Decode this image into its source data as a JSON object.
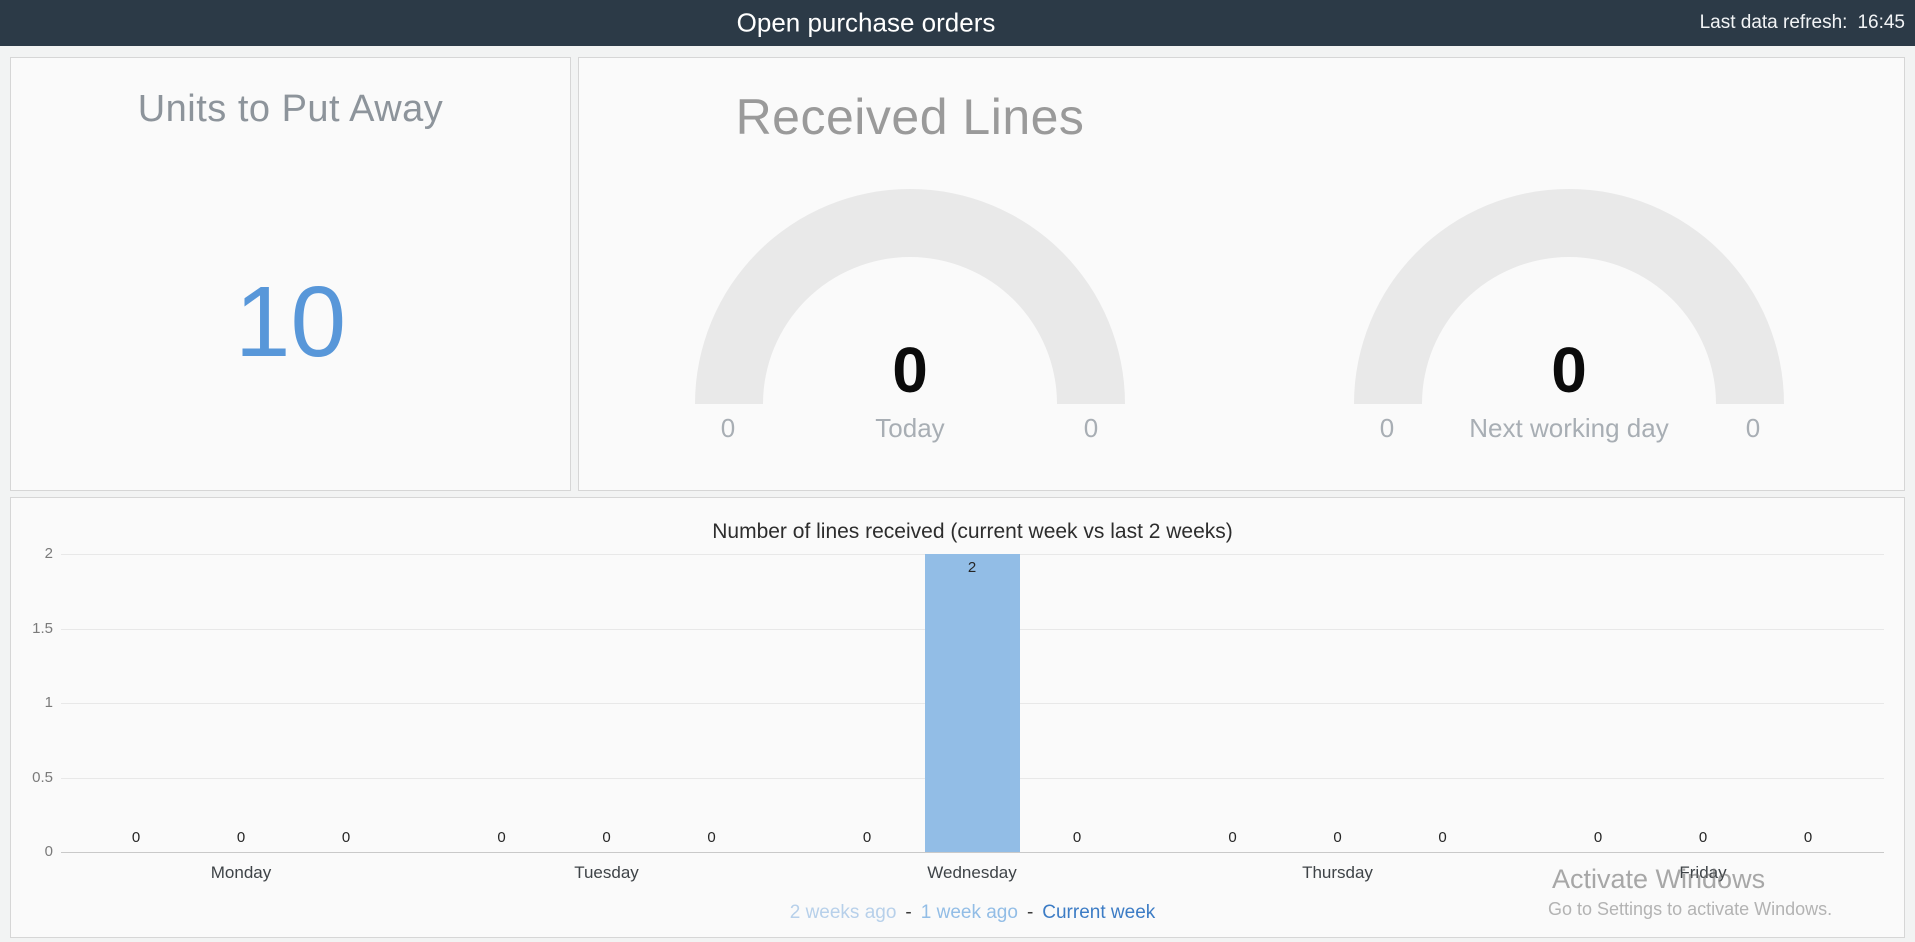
{
  "header": {
    "title": "Open purchase orders",
    "refresh_label": "Last data refresh:",
    "refresh_time": "16:45"
  },
  "units_panel": {
    "title": "Units to Put Away",
    "value": "10"
  },
  "received_panel": {
    "title": "Received Lines",
    "gauges": [
      {
        "value": "0",
        "min": "0",
        "max": "0",
        "caption": "Today"
      },
      {
        "value": "0",
        "min": "0",
        "max": "0",
        "caption": "Next working day"
      }
    ]
  },
  "chart_data": {
    "type": "bar",
    "title": "Number of lines received (current week vs last 2 weeks)",
    "categories": [
      "Monday",
      "Tuesday",
      "Wednesday",
      "Thursday",
      "Friday"
    ],
    "series": [
      {
        "name": "2 weeks ago",
        "color": "#b7d0ea",
        "values": [
          0,
          0,
          0,
          0,
          0
        ]
      },
      {
        "name": "1 week ago",
        "color": "#92bde6",
        "values": [
          0,
          0,
          2,
          0,
          0
        ]
      },
      {
        "name": "Current week",
        "color": "#3c7cc5",
        "values": [
          0,
          0,
          0,
          0,
          0
        ]
      }
    ],
    "yticks": [
      0,
      0.5,
      1,
      1.5,
      2
    ],
    "ylim": [
      0,
      2
    ],
    "grid": true,
    "legend_position": "bottom",
    "legend_separator": "-",
    "value_labels": true
  },
  "watermark": {
    "line1": "Activate Windows",
    "line2": "Go to Settings to activate Windows."
  },
  "colors": {
    "header_bg": "#2c3a47",
    "kpi_blue": "#5897d9",
    "gauge_arc": "#e9e9e9",
    "gridline": "#e8e8e8",
    "baseline": "#c9c9c9"
  }
}
